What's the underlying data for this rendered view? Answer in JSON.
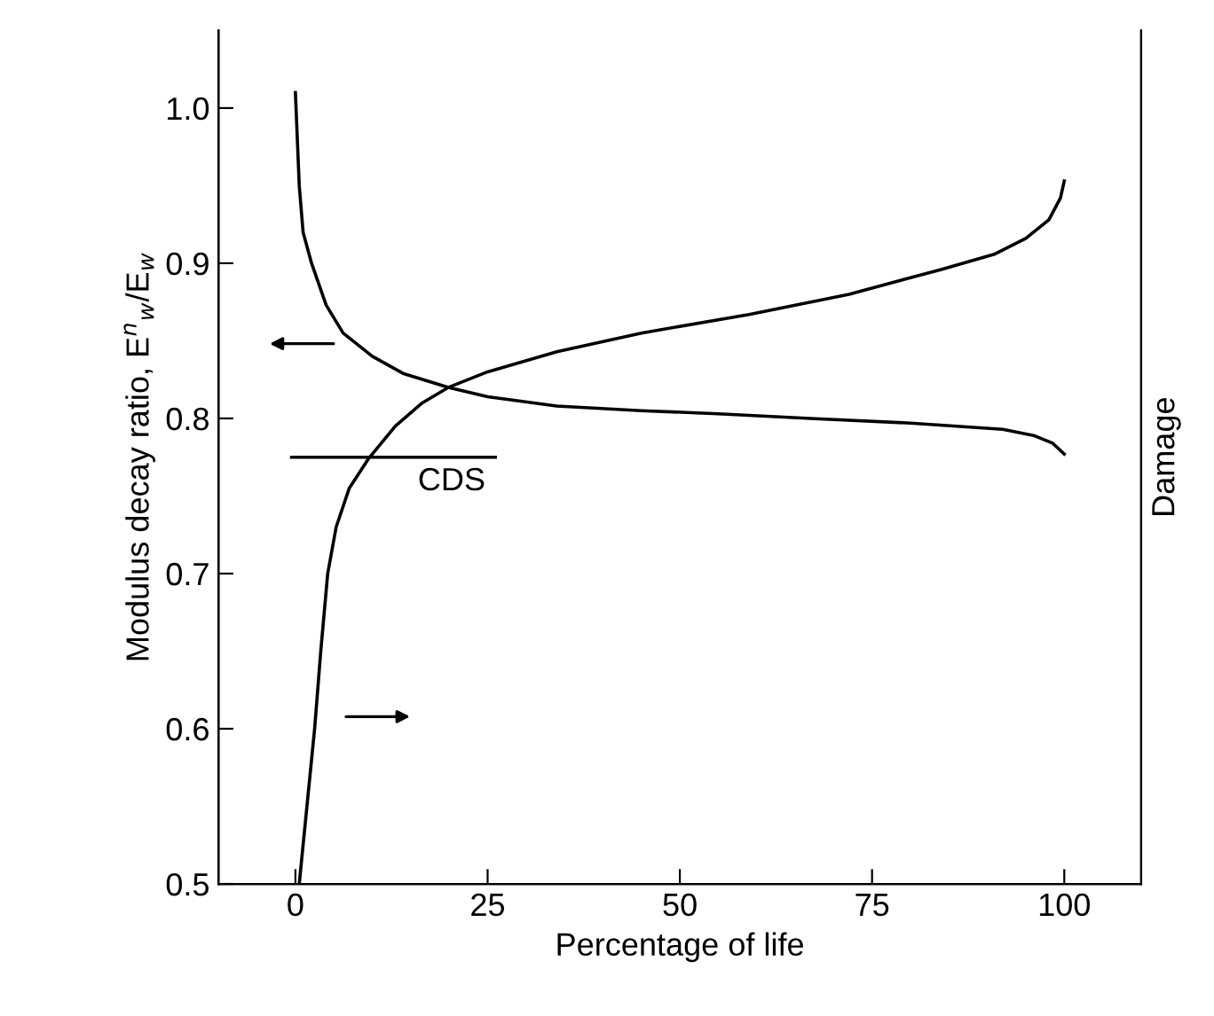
{
  "chart_data": {
    "type": "line",
    "xlabel": "Percentage of life",
    "ylabel": "Modulus decay ratio, E$^{n}$$_{w}$/E$_{w}$",
    "y2label": "Damage",
    "xlim": [
      -10,
      110
    ],
    "xticks": [
      0,
      25,
      50,
      75,
      100
    ],
    "ylim": [
      0.5,
      1.05
    ],
    "yticks": [
      0.5,
      0.6,
      0.7,
      0.8,
      0.9,
      {
        "value": 1,
        "label": "1.0"
      }
    ],
    "grid": false,
    "legend": false,
    "marker": "none",
    "line_style": "solid",
    "series": [
      {
        "color": "#000000",
        "x": [
          0,
          0.5,
          1,
          2.1,
          4,
          6.2,
          10,
          14,
          19.9,
          25,
          34,
          45,
          55,
          67,
          80,
          92,
          96,
          98.5,
          100
        ],
        "values": [
          1.01,
          0.95,
          0.92,
          0.9,
          0.873,
          0.855,
          0.84,
          0.829,
          0.82,
          0.814,
          0.808,
          0.805,
          0.803,
          0.8,
          0.797,
          0.793,
          0.789,
          0.784,
          0.777
        ]
      },
      {
        "color": "#000000",
        "x": [
          0.5,
          1.5,
          2.5,
          3.3,
          4.2,
          5.3,
          7,
          9.5,
          13,
          16.5,
          19.9,
          25,
          34,
          45,
          59,
          72,
          84,
          91,
          95,
          98,
          99.5,
          100
        ],
        "values": [
          0.5,
          0.55,
          0.6,
          0.65,
          0.7,
          0.73,
          0.755,
          0.774,
          0.795,
          0.81,
          0.82,
          0.83,
          0.843,
          0.855,
          0.867,
          0.88,
          0.896,
          0.906,
          0.916,
          0.928,
          0.942,
          0.953
        ]
      },
      {
        "name": "CDS",
        "color": "#000000",
        "x": [
          -0.5,
          26
        ],
        "values": [
          0.775,
          0.775
        ]
      }
    ]
  }
}
